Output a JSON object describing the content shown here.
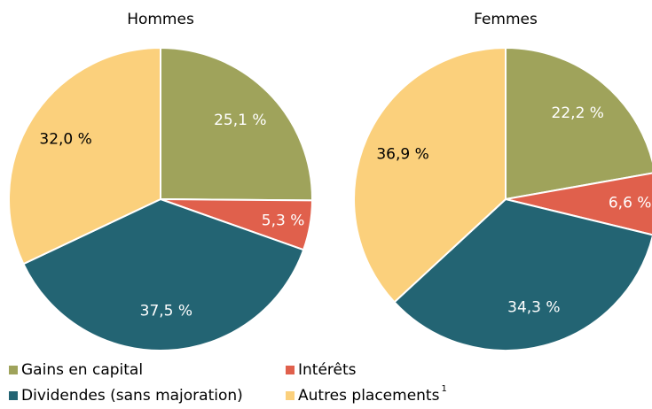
{
  "chart_data": [
    {
      "type": "pie",
      "title": "Hommes",
      "categories": [
        "Gains en capital",
        "Intérêts",
        "Dividendes (sans majoration)",
        "Autres placements"
      ],
      "category_notes": [
        null,
        null,
        null,
        "1"
      ],
      "values": [
        25.1,
        5.3,
        37.5,
        32.0
      ],
      "value_labels": [
        "25,1 %",
        "5,3 %",
        "37,5 %",
        "32,0 %"
      ],
      "colors": [
        "#9fa35b",
        "#e0604c",
        "#236473",
        "#fbd07c"
      ],
      "label_colors": [
        "#ffffff",
        "#ffffff",
        "#ffffff",
        "#000000"
      ]
    },
    {
      "type": "pie",
      "title": "Femmes",
      "categories": [
        "Gains en capital",
        "Intérêts",
        "Dividendes (sans majoration)",
        "Autres placements"
      ],
      "values": [
        22.2,
        6.6,
        34.3,
        36.9
      ],
      "value_labels": [
        "22,2 %",
        "6,6 %",
        "34,3 %",
        "36,9 %"
      ],
      "colors": [
        "#9fa35b",
        "#e0604c",
        "#236473",
        "#fbd07c"
      ],
      "label_colors": [
        "#ffffff",
        "#ffffff",
        "#ffffff",
        "#000000"
      ]
    }
  ]
}
